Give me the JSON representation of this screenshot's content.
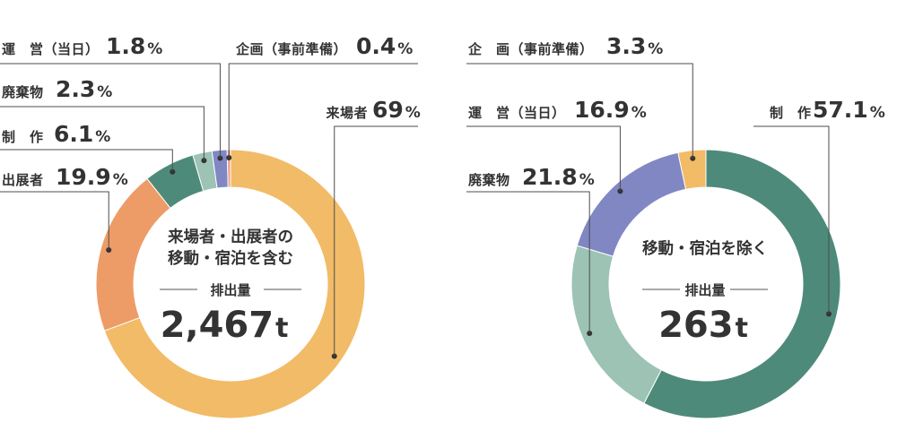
{
  "chart_data": [
    {
      "type": "pie",
      "center_title_lines": [
        "来場者・出展者の",
        "移動・宿泊を含む"
      ],
      "center_subtitle": "排出量",
      "total": "2,467",
      "total_unit": "t",
      "slices": [
        {
          "name": "来場者",
          "value": 69,
          "label_value": "69",
          "color": "#F2BB67"
        },
        {
          "name": "出展者",
          "value": 19.9,
          "label_value": "19.9",
          "color": "#EE9C67"
        },
        {
          "name": "制　作",
          "value": 6.1,
          "label_value": "6.1",
          "color": "#4E8A7A"
        },
        {
          "name": "廃棄物",
          "value": 2.3,
          "label_value": "2.3",
          "color": "#9CC3B4"
        },
        {
          "name": "運　営（当日）",
          "value": 1.8,
          "label_value": "1.8",
          "color": "#8087C3"
        },
        {
          "name": "企画（事前準備）",
          "value": 0.4,
          "label_value": "0.4",
          "color": "#EE9C8A"
        }
      ],
      "unit": "%"
    },
    {
      "type": "pie",
      "center_title_lines": [
        "移動・宿泊を除く"
      ],
      "center_subtitle": "排出量",
      "total": "263",
      "total_unit": "t",
      "slices": [
        {
          "name": "制　作",
          "value": 57.1,
          "label_value": "57.1",
          "color": "#4E8A7A"
        },
        {
          "name": "廃棄物",
          "value": 21.8,
          "label_value": "21.8",
          "color": "#9CC3B4"
        },
        {
          "name": "運　営（当日）",
          "value": 16.9,
          "label_value": "16.9",
          "color": "#8087C3"
        },
        {
          "name": "企　画（事前準備）",
          "value": 3.3,
          "label_value": "3.3",
          "color": "#F2BB67"
        }
      ],
      "unit": "%"
    }
  ]
}
